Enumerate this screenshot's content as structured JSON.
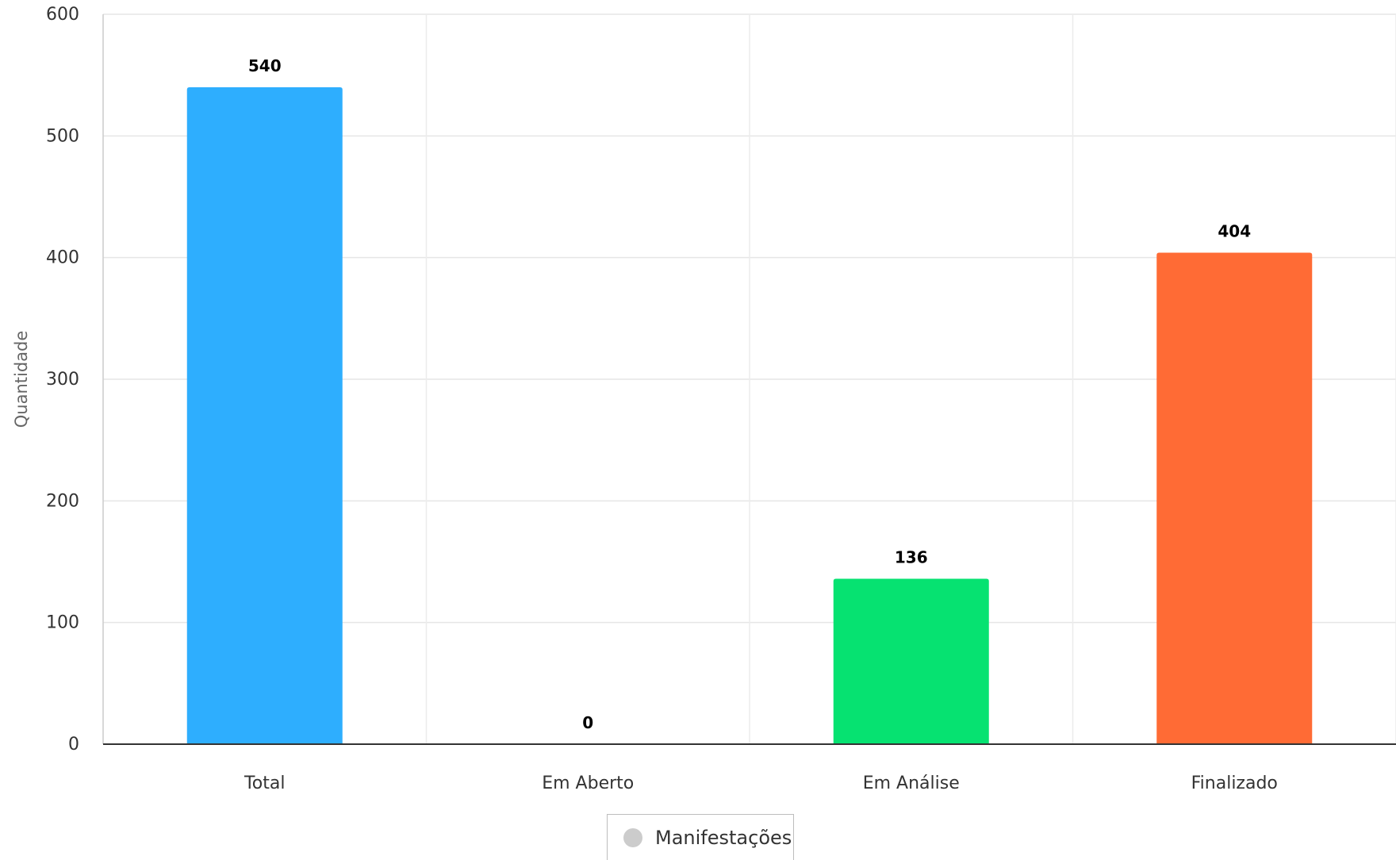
{
  "chart_data": {
    "type": "bar",
    "categories": [
      "Total",
      "Em Aberto",
      "Em Análise",
      "Finalizado"
    ],
    "values": [
      540,
      0,
      136,
      404
    ],
    "colors": [
      "#2eaefe",
      "#1fb5ff",
      "#06e271",
      "#ff6b35"
    ],
    "ylabel": "Quantidade",
    "ylim": [
      0,
      600
    ],
    "yticks": [
      0,
      100,
      200,
      300,
      400,
      500,
      600
    ],
    "grid": true,
    "legend": {
      "label": "Manifestações",
      "color": "#cccccc",
      "position": "bottom-center"
    }
  }
}
